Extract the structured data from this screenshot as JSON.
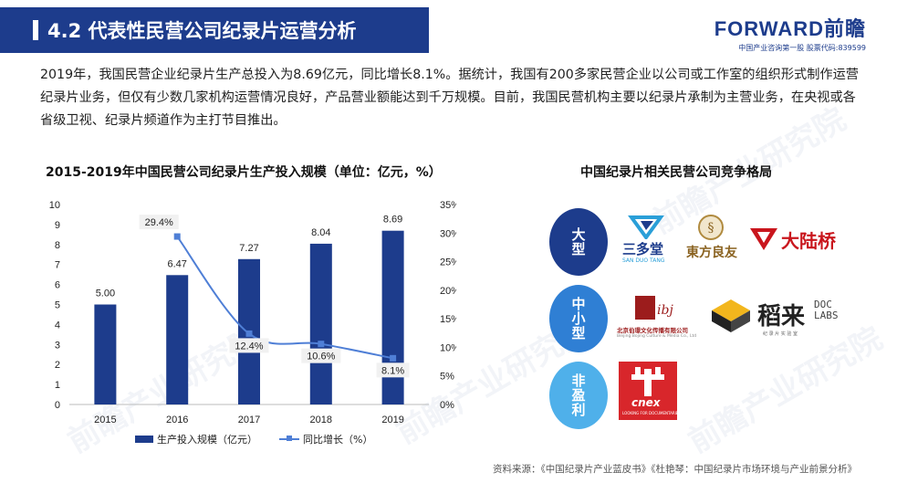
{
  "header": {
    "title": "4.2 代表性民营公司纪录片运营分析",
    "logo_text": "FORWARD前瞻",
    "logo_sub": "中国产业咨询第一股  股票代码:839599"
  },
  "paragraph": "2019年，我国民营企业纪录片生产总投入为8.69亿元，同比增长8.1%。据统计，我国有200多家民营企业以公司或工作室的组织形式制作运营纪录片业务，但仅有少数几家机构运营情况良好，产品营业额能达到千万规模。目前，我国民营机构主要以纪录片承制为主营业务，在央视或各省级卫视、纪录片频道作为主打节目推出。",
  "watermark": "前瞻产业研究院",
  "chart_data": {
    "type": "bar",
    "title": "2015-2019年中国民营公司纪录片生产投入规模（单位：亿元，%）",
    "categories": [
      "2015",
      "2016",
      "2017",
      "2018",
      "2019"
    ],
    "series": [
      {
        "name": "生产投入规模（亿元）",
        "type": "bar",
        "axis": "left",
        "color": "#1d3c8c",
        "values": [
          5.0,
          6.47,
          7.27,
          8.04,
          8.69
        ],
        "labels": [
          "5.00",
          "6.47",
          "7.27",
          "8.04",
          "8.69"
        ]
      },
      {
        "name": "同比增长（%）",
        "type": "line",
        "axis": "right",
        "color": "#4f7fd6",
        "values": [
          null,
          29.4,
          12.4,
          10.6,
          8.1
        ],
        "labels": [
          "",
          "29.4%",
          "12.4%",
          "10.6%",
          "8.1%"
        ]
      }
    ],
    "yleft": {
      "min": 0,
      "max": 10,
      "ticks": [
        "0",
        "1",
        "2",
        "3",
        "4",
        "5",
        "6",
        "7",
        "8",
        "9",
        "10"
      ]
    },
    "yright": {
      "min": 0,
      "max": 35,
      "ticks": [
        "0%",
        "5%",
        "10%",
        "15%",
        "20%",
        "25%",
        "30%",
        "35%"
      ]
    },
    "grid": false,
    "legend": "bottom"
  },
  "competition": {
    "title": "中国纪录片相关民营公司竞争格局",
    "tiers": [
      {
        "label": "大型",
        "companies": [
          "三多堂",
          "SAN DUO TANG",
          "東方良友",
          "大陆桥"
        ]
      },
      {
        "label": "中小型",
        "companies": [
          "北京伯璟文化传播有限公司",
          "Beijing Bojing Culture & Media Co., Ltd",
          "稻来",
          "纪 录 片 实 验 室"
        ]
      },
      {
        "label": "非盈利",
        "companies": [
          "cnex",
          "LOOKING FOR DOCUMENTARIES"
        ]
      }
    ]
  },
  "source": "资料来源：《中国纪录片产业蓝皮书》《杜艳琴：中国纪录片市场环境与产业前景分析》"
}
